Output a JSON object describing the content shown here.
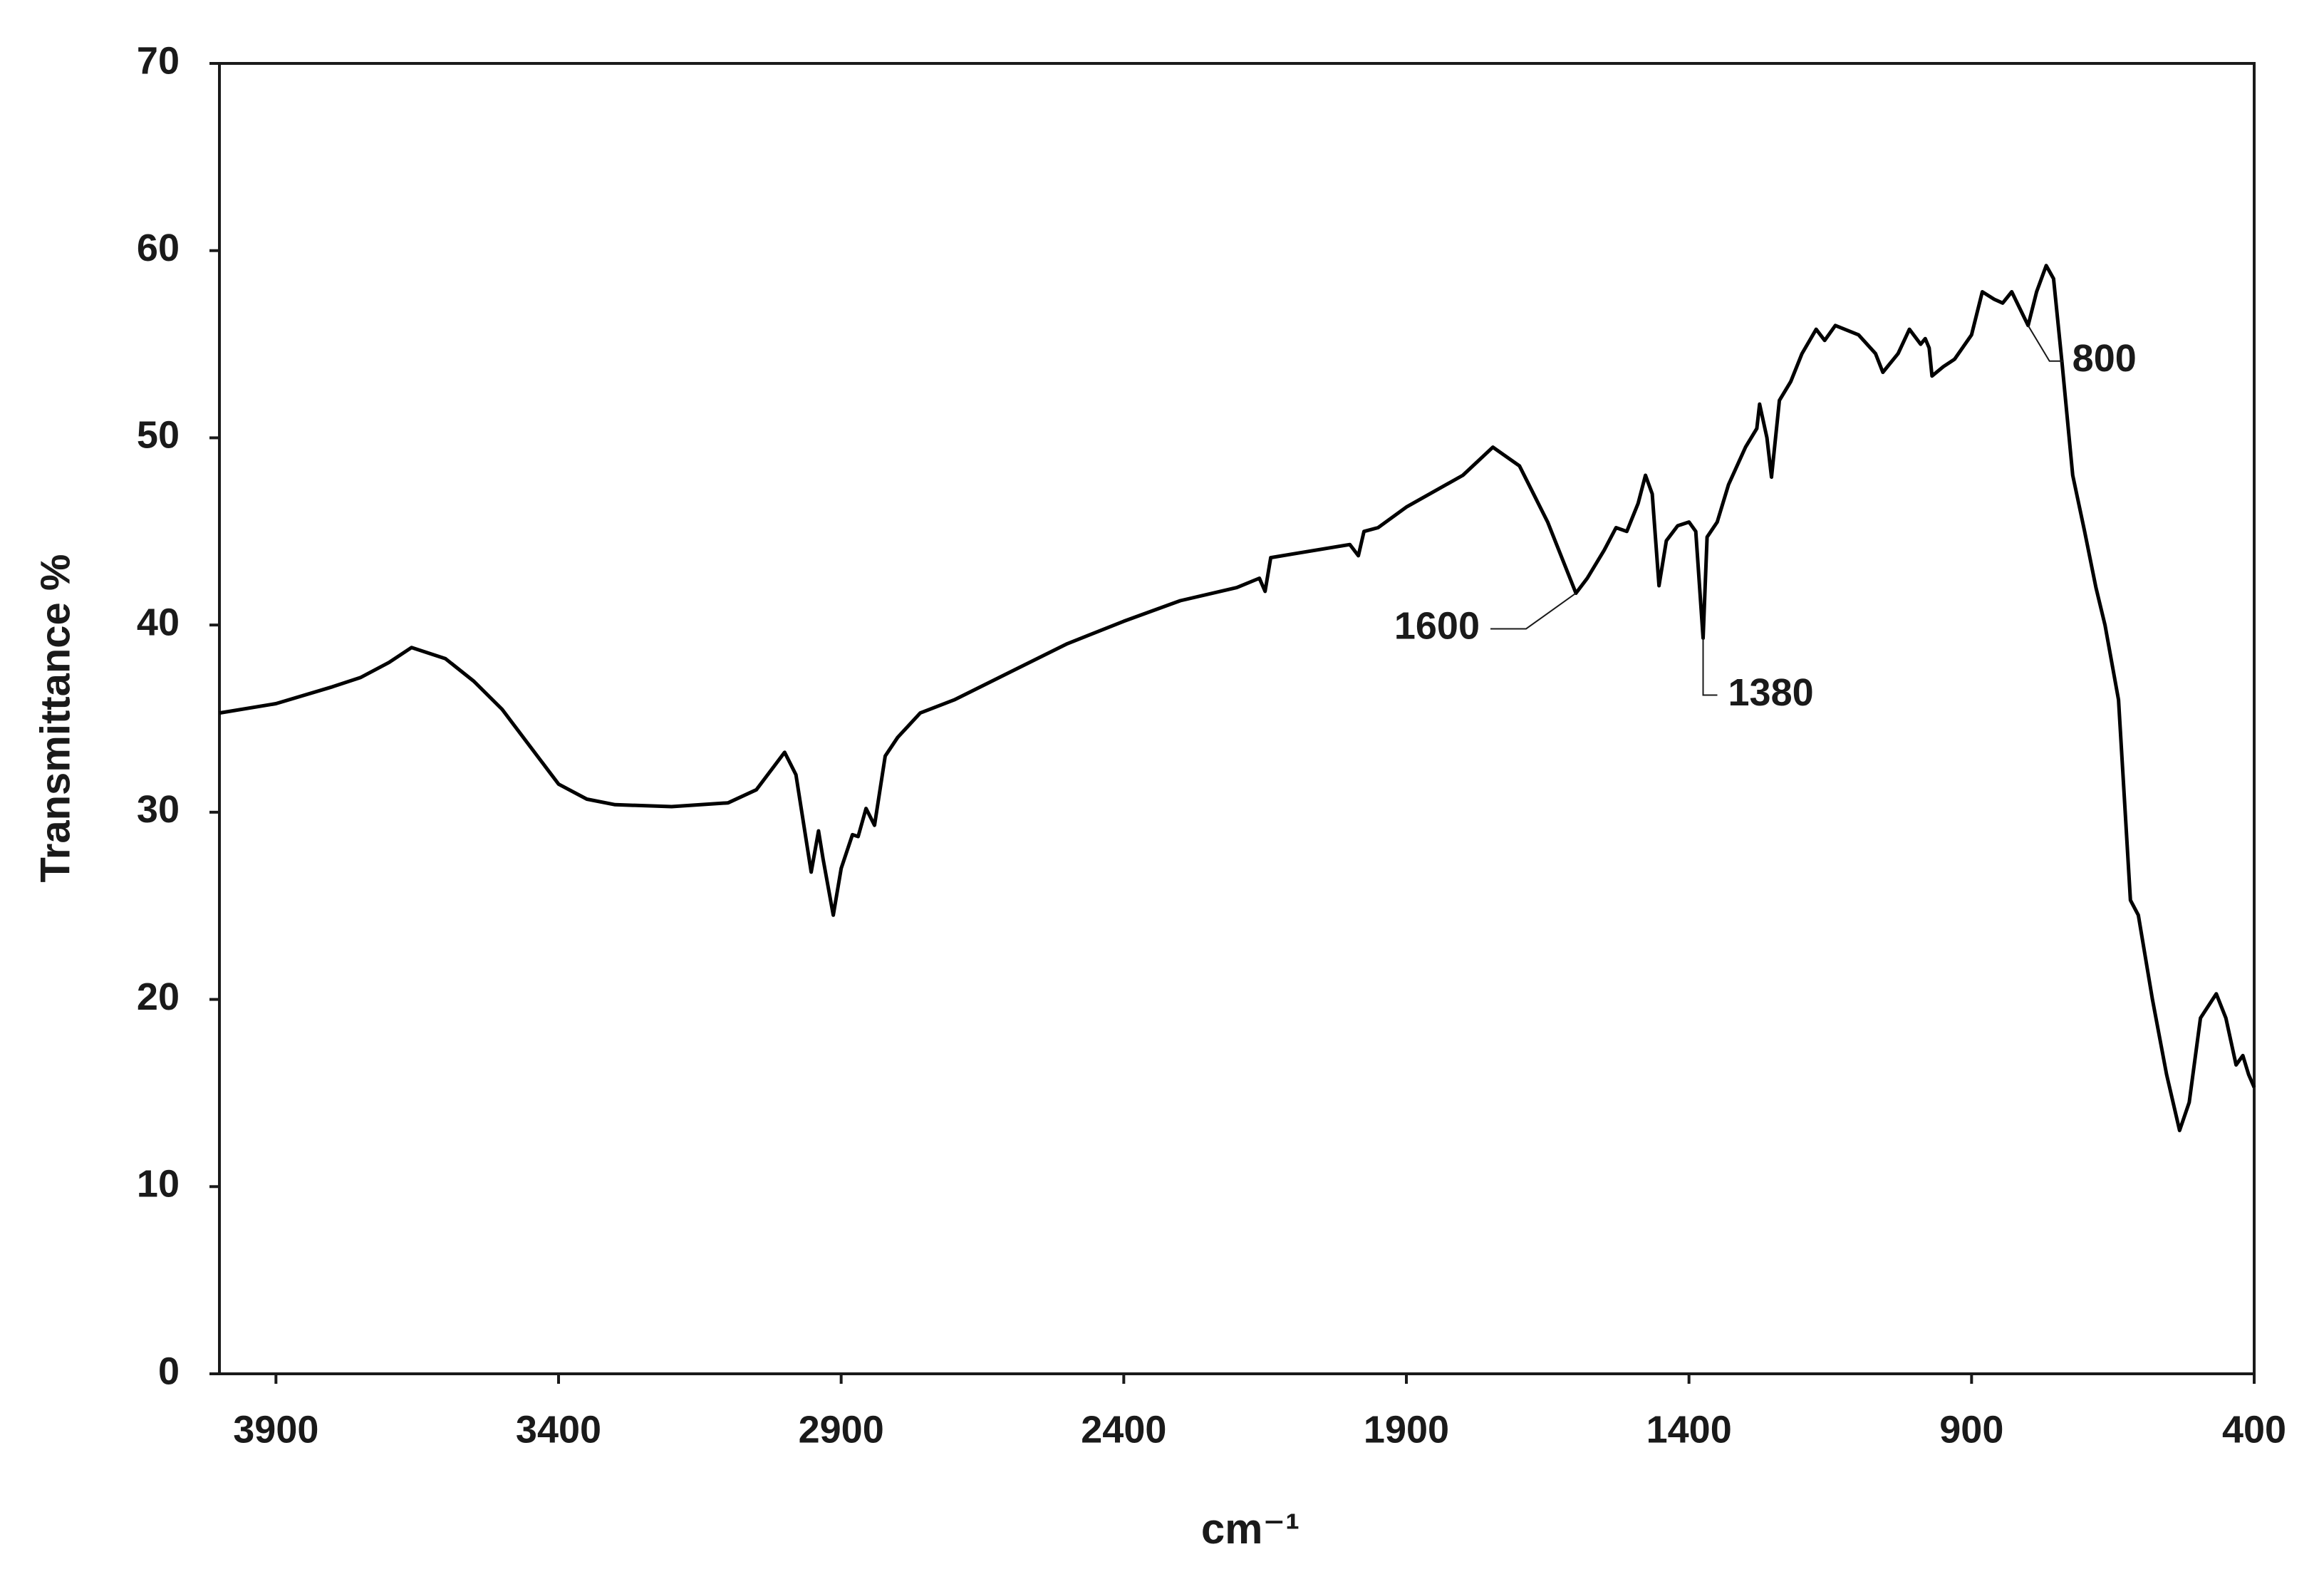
{
  "chart_data": {
    "type": "line",
    "xlabel": "cm⁻¹",
    "ylabel": "Transmittance  %",
    "x": [
      4000,
      3900,
      3800,
      3750,
      3700,
      3660,
      3600,
      3550,
      3500,
      3450,
      3400,
      3350,
      3300,
      3200,
      3100,
      3050,
      3000,
      2980,
      2953,
      2940,
      2932,
      2914,
      2900,
      2880,
      2870,
      2856,
      2841,
      2822,
      2800,
      2760,
      2700,
      2600,
      2500,
      2400,
      2300,
      2200,
      2160,
      2150,
      2140,
      2100,
      2000,
      1985,
      1975,
      1950,
      1900,
      1800,
      1747,
      1700,
      1650,
      1600,
      1580,
      1550,
      1529,
      1510,
      1490,
      1477,
      1465,
      1453,
      1440,
      1420,
      1400,
      1388,
      1375,
      1368,
      1350,
      1330,
      1300,
      1280,
      1275,
      1262,
      1254,
      1240,
      1220,
      1200,
      1175,
      1160,
      1141,
      1100,
      1070,
      1057,
      1030,
      1010,
      990,
      982,
      975,
      970,
      950,
      930,
      900,
      881,
      860,
      845,
      829,
      800,
      785,
      768,
      755,
      740,
      721,
      700,
      680,
      664,
      640,
      619,
      605,
      580,
      555,
      532,
      515,
      495,
      467,
      450,
      432,
      420,
      410,
      400
    ],
    "values": [
      35.3,
      35.8,
      36.7,
      37.2,
      38.0,
      38.8,
      38.2,
      37.0,
      35.5,
      33.5,
      31.5,
      30.7,
      30.4,
      30.3,
      30.5,
      31.2,
      33.2,
      32.0,
      26.8,
      29.0,
      27.5,
      24.5,
      27.0,
      28.8,
      28.7,
      30.2,
      29.3,
      33.0,
      34.0,
      35.3,
      36.0,
      37.5,
      39.0,
      40.2,
      41.3,
      42.0,
      42.5,
      41.8,
      43.6,
      43.8,
      44.3,
      43.7,
      45.0,
      45.2,
      46.3,
      48.0,
      49.5,
      48.5,
      45.5,
      41.7,
      42.5,
      44.0,
      45.2,
      45.0,
      46.5,
      48.0,
      47.0,
      42.1,
      44.5,
      45.3,
      45.5,
      45.0,
      39.3,
      44.7,
      45.5,
      47.5,
      49.5,
      50.5,
      51.8,
      50.0,
      47.9,
      52.0,
      53.0,
      54.5,
      55.8,
      55.2,
      56.0,
      55.5,
      54.5,
      53.5,
      54.5,
      55.8,
      55.0,
      55.3,
      54.8,
      53.3,
      53.8,
      54.2,
      55.5,
      57.8,
      57.4,
      57.2,
      57.8,
      56.0,
      57.8,
      59.2,
      58.5,
      54.0,
      48.0,
      45.0,
      42.0,
      40.0,
      36.0,
      25.3,
      24.5,
      20.0,
      16.0,
      13.0,
      14.5,
      19.0,
      20.3,
      19.0,
      16.5,
      17.0,
      16.0,
      15.3
    ],
    "color": "#000000",
    "xlim": [
      4000,
      400
    ],
    "xticks": [
      3900,
      3400,
      2900,
      2400,
      1900,
      1400,
      900,
      400
    ],
    "ylim": [
      0,
      70
    ],
    "yticks": [
      0,
      10,
      20,
      30,
      40,
      50,
      60,
      70
    ],
    "grid": false,
    "annotations": [
      {
        "text": "1600",
        "x": 1600,
        "y": 41.7
      },
      {
        "text": "1380",
        "x": 1375,
        "y": 39.3
      },
      {
        "text": "800",
        "x": 800,
        "y": 56.0
      }
    ]
  }
}
